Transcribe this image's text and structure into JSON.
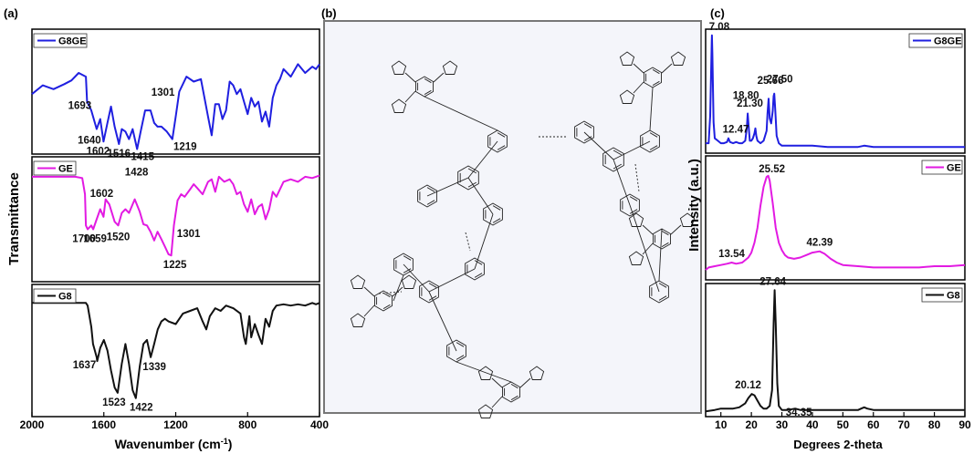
{
  "panel_labels": {
    "a": "(a)",
    "b": "(b)",
    "c": "(c)"
  },
  "colors": {
    "G8GE": "#1f1fe0",
    "GE": "#e21ae2",
    "G8": "#111111",
    "scheme_bg": "#f4f5fa"
  },
  "chart_data": [
    {
      "type": "line",
      "id": "ftir",
      "xlabel": "Wavenumber (cm",
      "xlabel_sup": "-1",
      "xlabel_end": ")",
      "ylabel": "Transmittance",
      "xlim": [
        2000,
        400
      ],
      "x_ticks": [
        2000,
        1600,
        1200,
        800,
        400
      ],
      "series": [
        {
          "name": "G8GE",
          "x": [
            2000,
            1940,
            1880,
            1820,
            1780,
            1740,
            1700,
            1693,
            1670,
            1640,
            1620,
            1602,
            1580,
            1560,
            1540,
            1516,
            1500,
            1480,
            1460,
            1440,
            1415,
            1395,
            1370,
            1340,
            1320,
            1301,
            1280,
            1250,
            1219,
            1200,
            1180,
            1140,
            1100,
            1060,
            1040,
            1020,
            1000,
            980,
            960,
            940,
            920,
            900,
            880,
            860,
            840,
            820,
            800,
            780,
            760,
            740,
            720,
            700,
            680,
            660,
            640,
            620,
            600,
            560,
            520,
            480,
            440,
            420,
            400
          ],
          "y": [
            0.48,
            0.55,
            0.52,
            0.56,
            0.59,
            0.65,
            0.62,
            0.42,
            0.35,
            0.2,
            0.28,
            0.1,
            0.25,
            0.38,
            0.22,
            0.08,
            0.2,
            0.18,
            0.12,
            0.2,
            0.04,
            0.18,
            0.35,
            0.35,
            0.25,
            0.22,
            0.22,
            0.18,
            0.12,
            0.3,
            0.5,
            0.62,
            0.58,
            0.6,
            0.45,
            0.3,
            0.15,
            0.4,
            0.4,
            0.28,
            0.35,
            0.58,
            0.55,
            0.48,
            0.52,
            0.42,
            0.32,
            0.45,
            0.38,
            0.42,
            0.26,
            0.34,
            0.22,
            0.45,
            0.55,
            0.6,
            0.68,
            0.62,
            0.72,
            0.65,
            0.7,
            0.68,
            0.72
          ],
          "annotations": [
            {
              "text": "1693",
              "x": 1693,
              "y": 0.42
            },
            {
              "text": "1640",
              "x": 1640,
              "y": 0.2
            },
            {
              "text": "1602",
              "x": 1602,
              "y": 0.1
            },
            {
              "text": "1516",
              "x": 1516,
              "y": 0.08
            },
            {
              "text": "1415",
              "x": 1415,
              "y": 0.04
            },
            {
              "text": "1301",
              "x": 1301,
              "y": 0.22
            },
            {
              "text": "1219",
              "x": 1219,
              "y": 0.12
            }
          ]
        },
        {
          "name": "GE",
          "x": [
            2000,
            1900,
            1800,
            1760,
            1720,
            1705,
            1700,
            1690,
            1670,
            1659,
            1640,
            1620,
            1602,
            1590,
            1570,
            1540,
            1520,
            1500,
            1480,
            1460,
            1440,
            1428,
            1400,
            1380,
            1360,
            1340,
            1320,
            1301,
            1280,
            1260,
            1240,
            1225,
            1210,
            1190,
            1170,
            1150,
            1120,
            1100,
            1080,
            1050,
            1020,
            1000,
            980,
            960,
            930,
            900,
            880,
            860,
            840,
            820,
            800,
            780,
            760,
            740,
            720,
            700,
            680,
            660,
            640,
            600,
            560,
            520,
            480,
            440,
            400
          ],
          "y": [
            0.84,
            0.84,
            0.84,
            0.84,
            0.83,
            0.7,
            0.45,
            0.42,
            0.45,
            0.42,
            0.5,
            0.58,
            0.52,
            0.66,
            0.62,
            0.48,
            0.45,
            0.55,
            0.58,
            0.55,
            0.62,
            0.66,
            0.56,
            0.46,
            0.45,
            0.4,
            0.33,
            0.4,
            0.34,
            0.28,
            0.22,
            0.21,
            0.45,
            0.65,
            0.7,
            0.68,
            0.74,
            0.78,
            0.75,
            0.7,
            0.8,
            0.82,
            0.72,
            0.84,
            0.8,
            0.82,
            0.78,
            0.7,
            0.72,
            0.62,
            0.56,
            0.66,
            0.54,
            0.6,
            0.62,
            0.5,
            0.58,
            0.72,
            0.68,
            0.8,
            0.82,
            0.8,
            0.84,
            0.83,
            0.85
          ],
          "annotations": [
            {
              "text": "1700",
              "x": 1700,
              "y": 0.42
            },
            {
              "text": "1659",
              "x": 1659,
              "y": 0.42
            },
            {
              "text": "1602",
              "x": 1602,
              "y": 0.52
            },
            {
              "text": "1520",
              "x": 1520,
              "y": 0.45
            },
            {
              "text": "1428",
              "x": 1428,
              "y": 0.66
            },
            {
              "text": "1301",
              "x": 1301,
              "y": 0.4
            },
            {
              "text": "1225",
              "x": 1225,
              "y": 0.21
            }
          ]
        },
        {
          "name": "G8",
          "x": [
            2000,
            1900,
            1800,
            1740,
            1700,
            1690,
            1670,
            1660,
            1640,
            1637,
            1620,
            1600,
            1580,
            1560,
            1540,
            1523,
            1500,
            1480,
            1460,
            1440,
            1422,
            1400,
            1380,
            1360,
            1339,
            1320,
            1300,
            1280,
            1260,
            1240,
            1200,
            1160,
            1120,
            1080,
            1050,
            1030,
            1010,
            980,
            950,
            920,
            880,
            840,
            820,
            810,
            800,
            790,
            780,
            760,
            740,
            720,
            700,
            680,
            660,
            640,
            600,
            560,
            520,
            480,
            440,
            420,
            400
          ],
          "y": [
            0.86,
            0.86,
            0.86,
            0.86,
            0.86,
            0.84,
            0.68,
            0.55,
            0.45,
            0.42,
            0.52,
            0.58,
            0.5,
            0.35,
            0.22,
            0.18,
            0.4,
            0.55,
            0.4,
            0.2,
            0.14,
            0.38,
            0.55,
            0.58,
            0.45,
            0.55,
            0.66,
            0.72,
            0.74,
            0.72,
            0.7,
            0.78,
            0.8,
            0.82,
            0.72,
            0.66,
            0.76,
            0.82,
            0.8,
            0.84,
            0.82,
            0.78,
            0.6,
            0.55,
            0.66,
            0.76,
            0.6,
            0.7,
            0.62,
            0.55,
            0.74,
            0.68,
            0.8,
            0.84,
            0.85,
            0.84,
            0.85,
            0.84,
            0.86,
            0.85,
            0.86
          ],
          "annotations": [
            {
              "text": "1637",
              "x": 1637,
              "y": 0.42
            },
            {
              "text": "1523",
              "x": 1523,
              "y": 0.18
            },
            {
              "text": "1422",
              "x": 1422,
              "y": 0.14
            },
            {
              "text": "1339",
              "x": 1339,
              "y": 0.45
            }
          ]
        }
      ]
    },
    {
      "type": "line",
      "id": "xrd",
      "xlabel": "Degrees 2-theta",
      "ylabel": "Intensity (a.u.)",
      "xlim": [
        5,
        90
      ],
      "x_ticks": [
        10,
        20,
        30,
        40,
        50,
        60,
        70,
        80,
        90
      ],
      "series": [
        {
          "name": "G8GE",
          "x": [
            5,
            6,
            6.5,
            7,
            7.08,
            7.2,
            7.6,
            8,
            9,
            10,
            11,
            12,
            12.47,
            13,
            14,
            15,
            16,
            17,
            18,
            18.5,
            18.8,
            19.1,
            19.5,
            20,
            20.5,
            21,
            21.3,
            21.6,
            22,
            23,
            24,
            25,
            25.3,
            25.66,
            26,
            26.5,
            27,
            27.3,
            27.5,
            27.8,
            28.3,
            29,
            30,
            33,
            36,
            40,
            45,
            50,
            55,
            57,
            60,
            65,
            70,
            75,
            80,
            85,
            90
          ],
          "y": [
            0.08,
            0.08,
            0.3,
            0.9,
            0.95,
            0.8,
            0.25,
            0.12,
            0.1,
            0.08,
            0.08,
            0.09,
            0.12,
            0.09,
            0.08,
            0.09,
            0.08,
            0.08,
            0.1,
            0.2,
            0.32,
            0.22,
            0.1,
            0.1,
            0.12,
            0.16,
            0.2,
            0.14,
            0.1,
            0.08,
            0.1,
            0.18,
            0.32,
            0.44,
            0.28,
            0.24,
            0.34,
            0.46,
            0.48,
            0.36,
            0.14,
            0.08,
            0.06,
            0.06,
            0.06,
            0.06,
            0.05,
            0.05,
            0.05,
            0.06,
            0.05,
            0.05,
            0.05,
            0.05,
            0.05,
            0.05,
            0.05
          ],
          "annotations": [
            {
              "text": "7.08",
              "x": 7.08,
              "y": 0.95
            },
            {
              "text": "12.47",
              "x": 12.47,
              "y": 0.12
            },
            {
              "text": "18.80",
              "x": 18.8,
              "y": 0.32
            },
            {
              "text": "21.30",
              "x": 21.3,
              "y": 0.2
            },
            {
              "text": "25.66",
              "x": 25.66,
              "y": 0.44
            },
            {
              "text": "27.50",
              "x": 27.5,
              "y": 0.48
            }
          ]
        },
        {
          "name": "GE",
          "x": [
            5,
            6,
            8,
            10,
            12,
            13.54,
            15,
            17,
            19,
            20,
            21,
            22,
            23,
            24,
            25,
            25.52,
            26,
            27,
            28,
            29,
            30,
            31,
            32,
            34,
            36,
            38,
            40,
            42.39,
            44,
            46,
            48,
            50,
            55,
            60,
            65,
            70,
            75,
            80,
            85,
            90
          ],
          "y": [
            0.08,
            0.1,
            0.11,
            0.12,
            0.13,
            0.14,
            0.13,
            0.14,
            0.18,
            0.22,
            0.3,
            0.42,
            0.6,
            0.75,
            0.83,
            0.84,
            0.8,
            0.62,
            0.42,
            0.3,
            0.24,
            0.2,
            0.18,
            0.17,
            0.18,
            0.2,
            0.22,
            0.23,
            0.21,
            0.17,
            0.14,
            0.12,
            0.11,
            0.1,
            0.1,
            0.1,
            0.1,
            0.11,
            0.11,
            0.12
          ],
          "annotations": [
            {
              "text": "25.52",
              "x": 25.52,
              "y": 0.84
            },
            {
              "text": "13.54",
              "x": 13.54,
              "y": 0.14
            },
            {
              "text": "42.39",
              "x": 42.39,
              "y": 0.23
            }
          ]
        },
        {
          "name": "G8",
          "x": [
            5,
            8,
            10,
            12,
            14,
            16,
            18,
            19,
            20.12,
            21,
            22,
            23,
            24,
            25,
            26,
            26.8,
            27.3,
            27.64,
            28,
            28.5,
            29,
            30,
            32,
            34.35,
            36,
            40,
            45,
            50,
            55,
            56,
            57,
            58,
            60,
            65,
            70,
            75,
            80,
            85,
            90
          ],
          "y": [
            0.04,
            0.05,
            0.06,
            0.06,
            0.06,
            0.07,
            0.1,
            0.14,
            0.17,
            0.16,
            0.12,
            0.08,
            0.06,
            0.06,
            0.08,
            0.2,
            0.7,
            0.95,
            0.7,
            0.25,
            0.08,
            0.05,
            0.05,
            0.06,
            0.05,
            0.05,
            0.05,
            0.05,
            0.05,
            0.06,
            0.07,
            0.06,
            0.05,
            0.05,
            0.05,
            0.05,
            0.05,
            0.05,
            0.05
          ],
          "annotations": [
            {
              "text": "27.64",
              "x": 27.64,
              "y": 0.95
            },
            {
              "text": "20.12",
              "x": 20.12,
              "y": 0.17
            },
            {
              "text": "34.35",
              "x": 34.35,
              "y": 0.06
            }
          ]
        }
      ]
    }
  ]
}
